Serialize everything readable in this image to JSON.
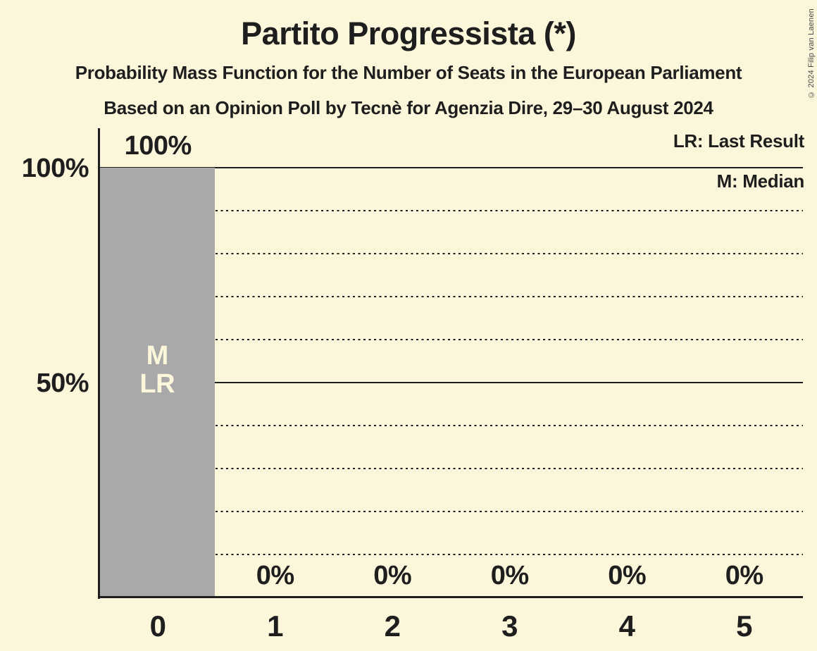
{
  "title": "Partito Progressista (*)",
  "subtitle1": "Probability Mass Function for the Number of Seats in the European Parliament",
  "subtitle2": "Based on an Opinion Poll by Tecnè for Agenzia Dire, 29–30 August 2024",
  "legend": {
    "lr": "LR: Last Result",
    "m": "M: Median"
  },
  "copyright": "© 2024 Filip van Laenen",
  "colors": {
    "background": "#FCF7DB",
    "bar": "#A9A9A9",
    "ink": "#1E1E1E",
    "bar_label_text": "#FCF7DB",
    "copyright_text": "#474747"
  },
  "chart_data": {
    "type": "bar",
    "title": "Partito Progressista (*)",
    "subtitle": "Probability Mass Function for the Number of Seats in the European Parliament",
    "source_line": "Based on an Opinion Poll by Tecnè for Agenzia Dire, 29–30 August 2024",
    "xlabel": "",
    "ylabel": "",
    "categories": [
      "0",
      "1",
      "2",
      "3",
      "4",
      "5"
    ],
    "values_percent": [
      100,
      0,
      0,
      0,
      0,
      0
    ],
    "value_labels": [
      "100%",
      "0%",
      "0%",
      "0%",
      "0%",
      "0%"
    ],
    "ylim": [
      0,
      100
    ],
    "ytick_values": [
      100,
      50
    ],
    "ytick_labels": [
      "100%",
      "50%"
    ],
    "solid_gridlines": [
      100,
      50
    ],
    "dotted_gridlines": [
      90,
      80,
      70,
      60,
      40,
      30,
      20,
      10
    ],
    "legend_entries": [
      "LR: Last Result",
      "M: Median"
    ],
    "median_seats": "0",
    "last_result_seats": "0",
    "bar_annotations": [
      {
        "category": "0",
        "labels": [
          "M",
          "LR"
        ]
      }
    ],
    "grid": true,
    "legend_position": "top-right"
  }
}
